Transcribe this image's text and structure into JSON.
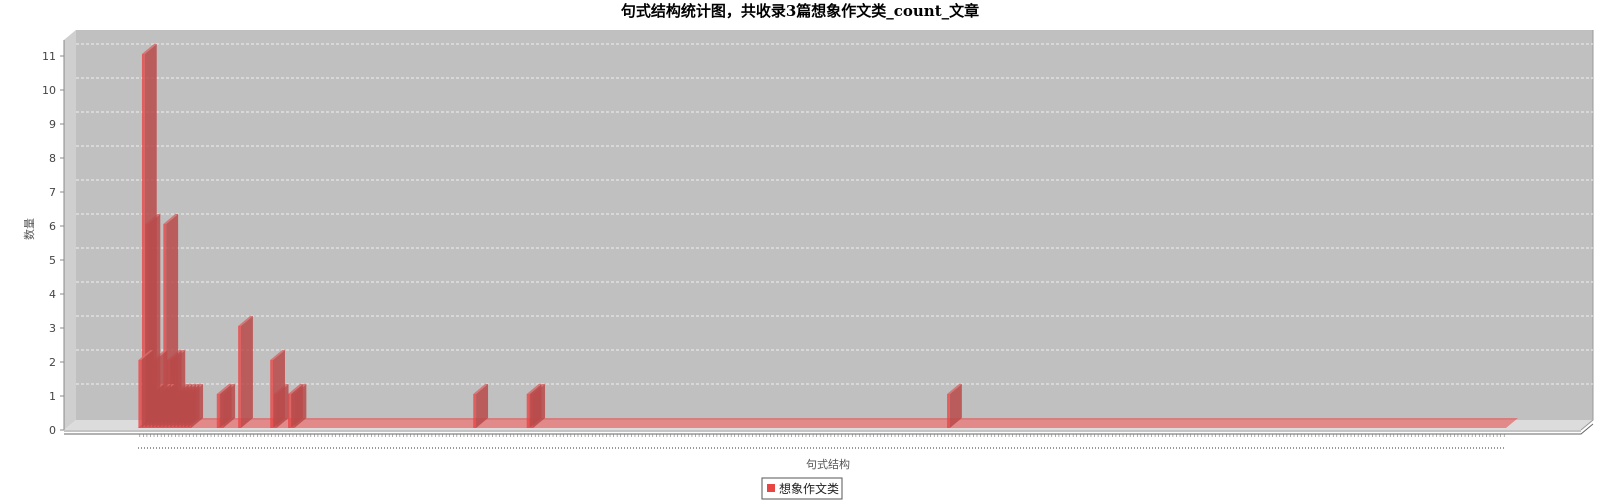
{
  "chart_data": {
    "type": "bar",
    "title": "句式结构统计图，共收录3篇想象作文类_count_文章",
    "xlabel": "句式结构",
    "ylabel": "数量",
    "ylim": [
      0,
      11
    ],
    "yticks": [
      "0",
      "1",
      "2",
      "3",
      "4",
      "5",
      "6",
      "7",
      "8",
      "9",
      "10",
      "11"
    ],
    "grid": true,
    "legend_position": "bottom-center",
    "bar_color": "#e84545",
    "series": [
      {
        "name": "想象作文类",
        "values": [
          2,
          11,
          6,
          1,
          2,
          1,
          1,
          6,
          2,
          2,
          1,
          1,
          1,
          1,
          1,
          0,
          0,
          0,
          0,
          0,
          0,
          0,
          1,
          1,
          0,
          0,
          0,
          0,
          3,
          0,
          0,
          0,
          0,
          0,
          0,
          0,
          0,
          2,
          1,
          0,
          0,
          0,
          1,
          1,
          0,
          0,
          0,
          0,
          0,
          0,
          0,
          0,
          0,
          0,
          0,
          0,
          0,
          0,
          0,
          0,
          0,
          0,
          0,
          0,
          0,
          0,
          0,
          0,
          0,
          0,
          0,
          0,
          0,
          0,
          0,
          0,
          0,
          0,
          0,
          0,
          0,
          0,
          0,
          0,
          0,
          0,
          0,
          0,
          0,
          0,
          0,
          0,
          0,
          0,
          1,
          0,
          0,
          0,
          0,
          0,
          0,
          0,
          0,
          0,
          0,
          0,
          0,
          0,
          0,
          1,
          1,
          0,
          0,
          0,
          0,
          0,
          0,
          0,
          0,
          0,
          0,
          0,
          0,
          0,
          0,
          0,
          0,
          0,
          0,
          0,
          0,
          0,
          0,
          0,
          0,
          0,
          0,
          0,
          0,
          0,
          0,
          0,
          0,
          0,
          0,
          0,
          0,
          0,
          0,
          0,
          0,
          0,
          0,
          0,
          0,
          0,
          0,
          0,
          0,
          0,
          0,
          0,
          0,
          0,
          0,
          0,
          0,
          0,
          0,
          0,
          0,
          0,
          0,
          0,
          0,
          0,
          0,
          0,
          0,
          0,
          0,
          0,
          0,
          0,
          0,
          0,
          0,
          0,
          0,
          0,
          0,
          0,
          0,
          0,
          0,
          0,
          0,
          0,
          0,
          0,
          0,
          0,
          0,
          0,
          0,
          0,
          0,
          0,
          0,
          0,
          0,
          0,
          0,
          0,
          0,
          0,
          0,
          0,
          0,
          0,
          0,
          0,
          0,
          0,
          0,
          0,
          0,
          1,
          0,
          0,
          0,
          0,
          0,
          0,
          0,
          0,
          0,
          0,
          0,
          0,
          0,
          0,
          0,
          0,
          0,
          0,
          0,
          0,
          0,
          0,
          0,
          0,
          0,
          0,
          0,
          0,
          0,
          0,
          0,
          0,
          0,
          0,
          0,
          0,
          0,
          0,
          0,
          0,
          0,
          0,
          0,
          0,
          0,
          0,
          0,
          0,
          0,
          0,
          0,
          0,
          0,
          0,
          0,
          0,
          0,
          0,
          0,
          0,
          0,
          0,
          0,
          0,
          0,
          0,
          0,
          0,
          0,
          0,
          0,
          0,
          0,
          0,
          0,
          0,
          0,
          0,
          0,
          0,
          0,
          0,
          0,
          0,
          0,
          0,
          0,
          0,
          0,
          0,
          0,
          0,
          0,
          0,
          0,
          0,
          0,
          0,
          0,
          0,
          0,
          0,
          0,
          0,
          0,
          0,
          0,
          0,
          0,
          0,
          0,
          0,
          0,
          0,
          0,
          0,
          0,
          0,
          0,
          0,
          0,
          0,
          0,
          0,
          0,
          0,
          0,
          0,
          0,
          0,
          0,
          0,
          0,
          0,
          0,
          0,
          0,
          0,
          0,
          0,
          0,
          0,
          0,
          0,
          0,
          0,
          0,
          0,
          0,
          0,
          0,
          0,
          0,
          0,
          0,
          0
        ]
      }
    ]
  }
}
